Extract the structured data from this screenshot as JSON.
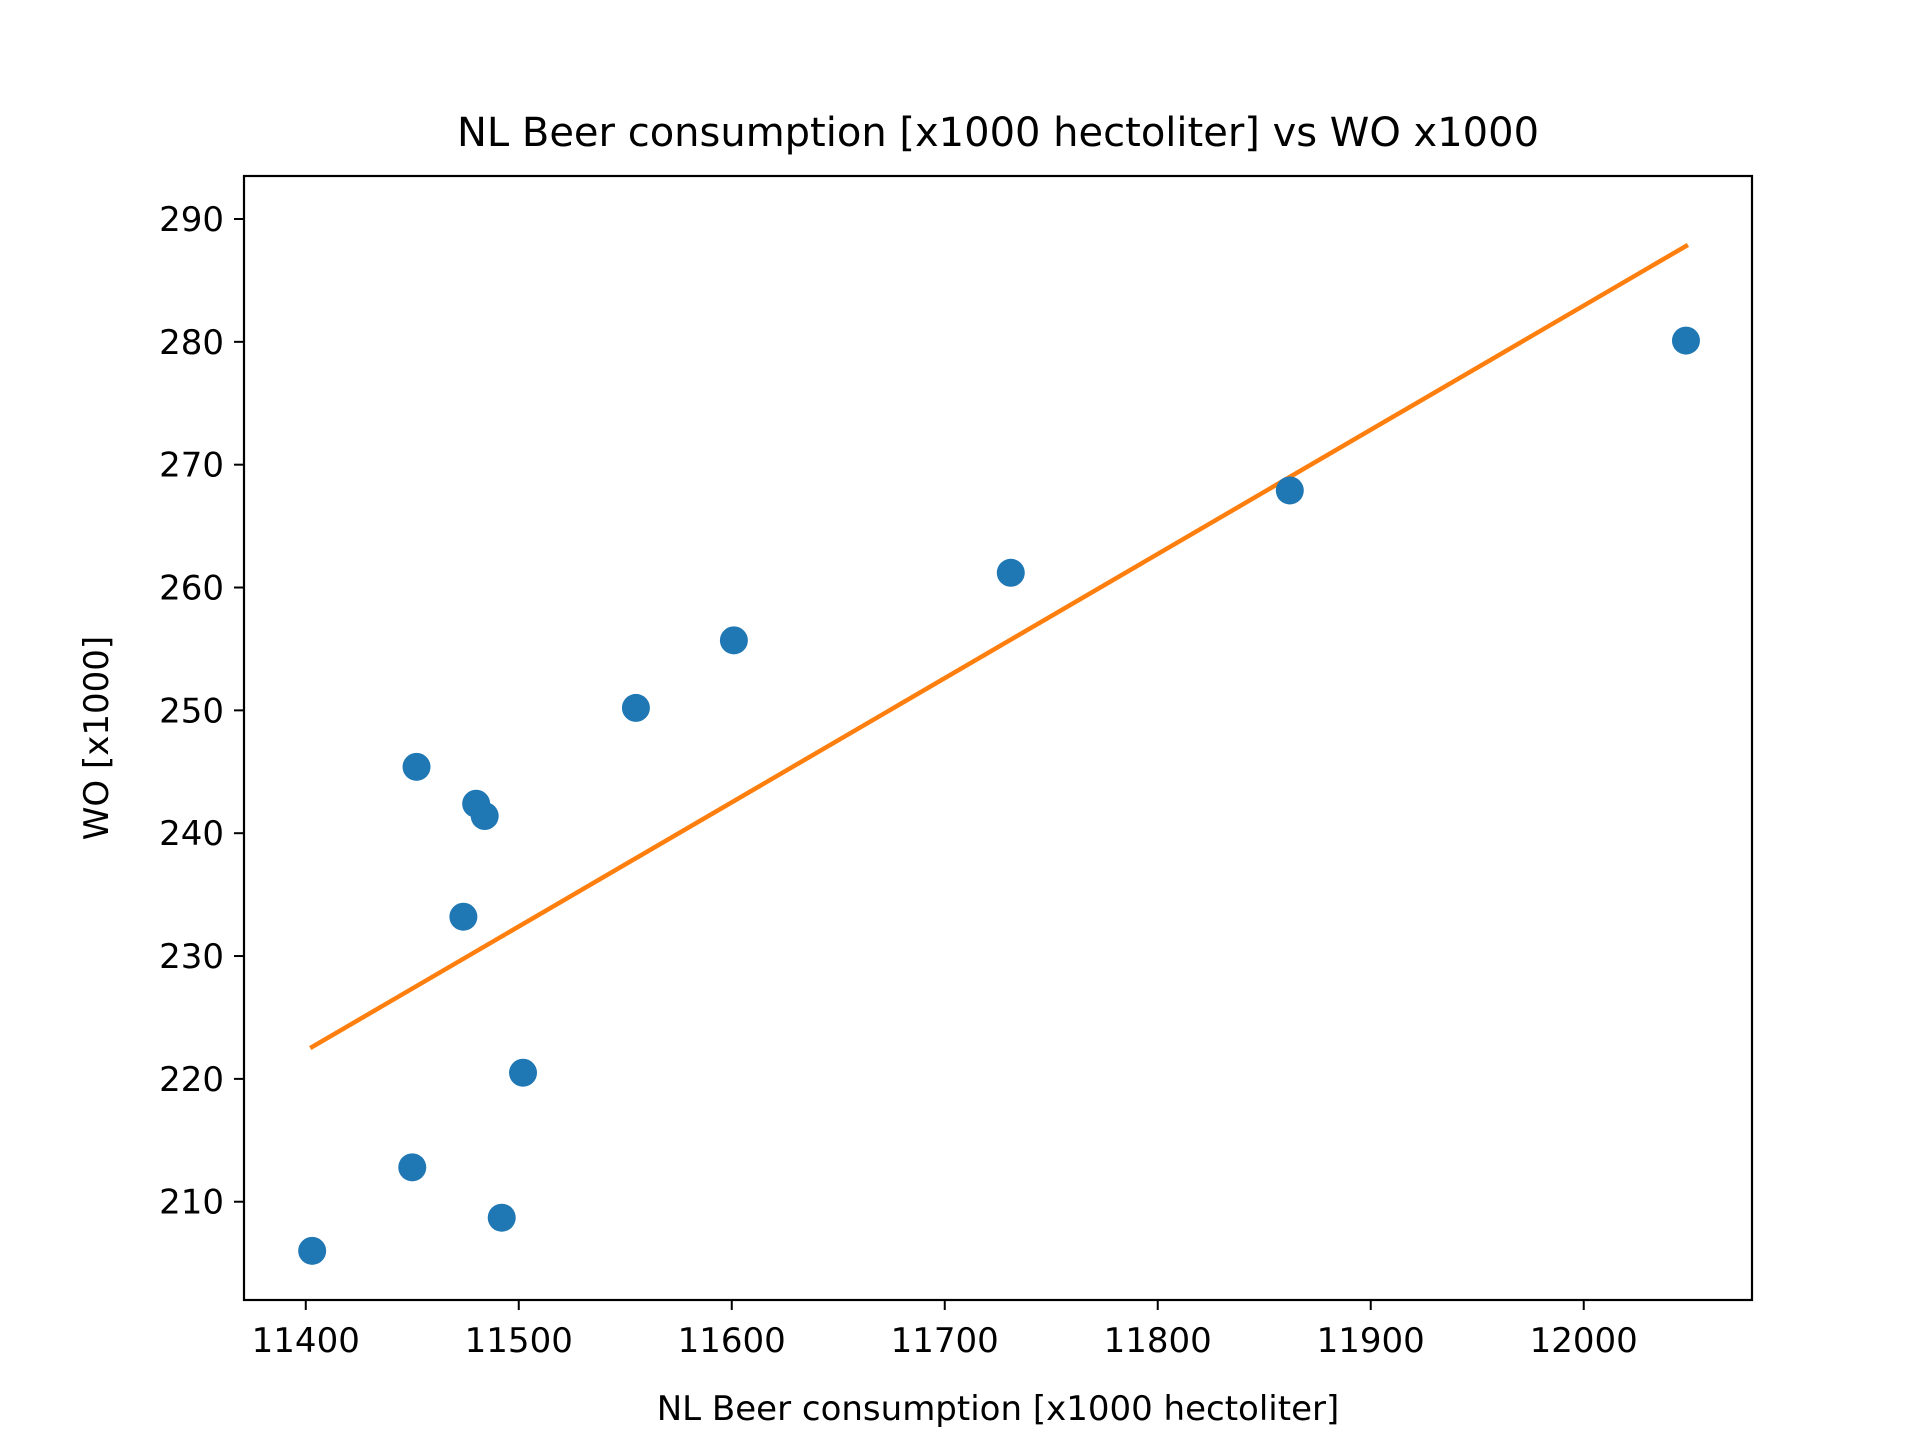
{
  "chart_data": {
    "type": "scatter",
    "title": "NL Beer consumption [x1000 hectoliter] vs WO x1000",
    "xlabel": "NL Beer consumption [x1000 hectoliter]",
    "ylabel": "WO [x1000]",
    "xlim": [
      11371,
      12079
    ],
    "ylim": [
      202,
      293.5
    ],
    "xticks": [
      11400,
      11500,
      11600,
      11700,
      11800,
      11900,
      12000
    ],
    "yticks": [
      210,
      220,
      230,
      240,
      250,
      260,
      270,
      280,
      290
    ],
    "grid": false,
    "points": [
      {
        "x": 11403,
        "y": 206.0
      },
      {
        "x": 11450,
        "y": 212.8
      },
      {
        "x": 11452,
        "y": 245.4
      },
      {
        "x": 11474,
        "y": 233.2
      },
      {
        "x": 11480,
        "y": 242.4
      },
      {
        "x": 11484,
        "y": 241.4
      },
      {
        "x": 11492,
        "y": 208.7
      },
      {
        "x": 11502,
        "y": 220.5
      },
      {
        "x": 11555,
        "y": 250.2
      },
      {
        "x": 11601,
        "y": 255.7
      },
      {
        "x": 11731,
        "y": 261.2
      },
      {
        "x": 11862,
        "y": 267.9
      },
      {
        "x": 12048,
        "y": 280.1
      }
    ],
    "fit_line": {
      "x": [
        11403,
        12048
      ],
      "y": [
        222.6,
        287.8
      ]
    },
    "colors": {
      "points": "#1f77b4",
      "fit_line": "#ff7f0e"
    }
  }
}
